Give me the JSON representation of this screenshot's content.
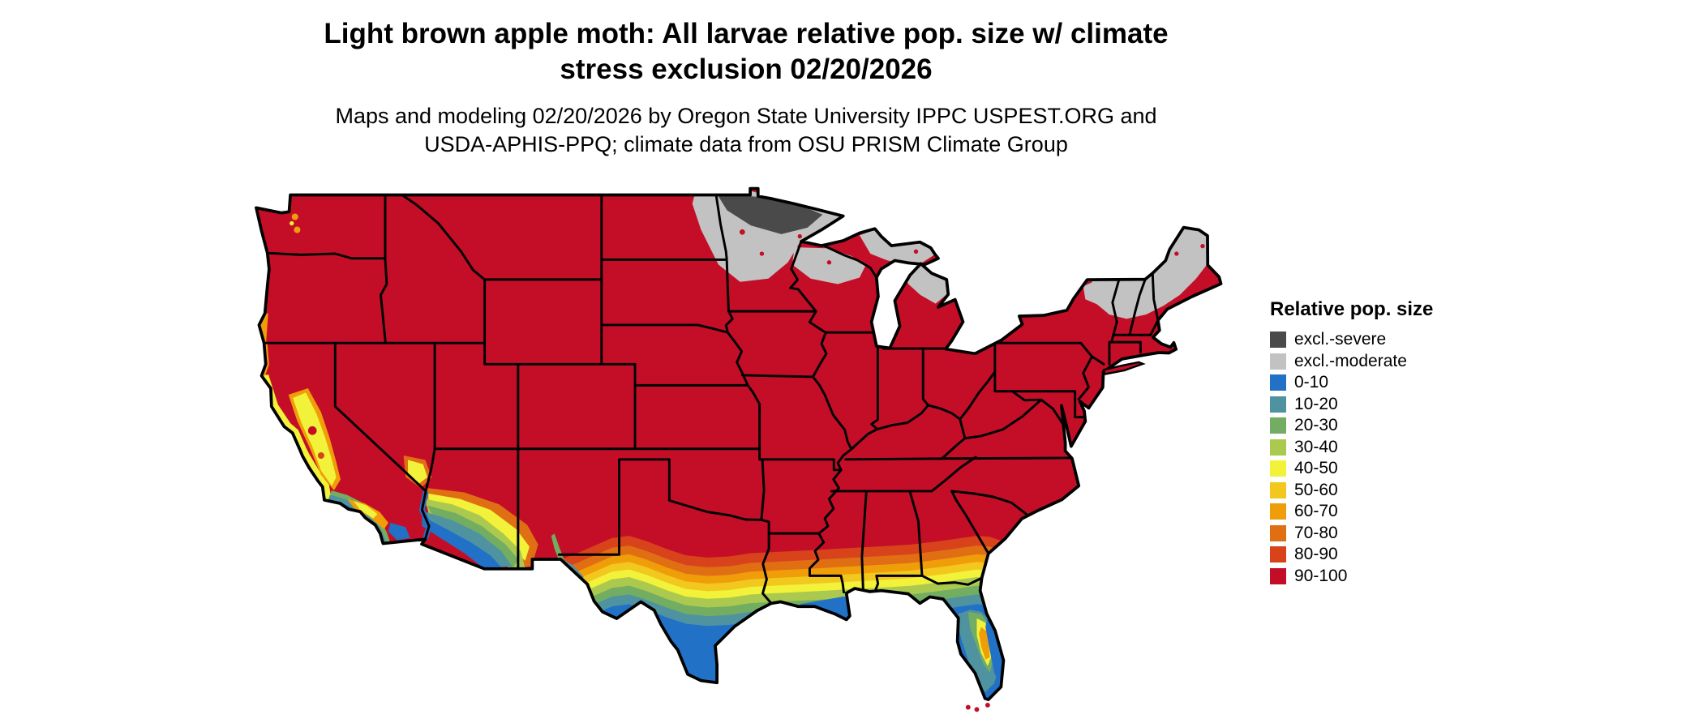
{
  "title": {
    "line1": "Light brown apple moth: All larvae relative pop. size w/ climate",
    "line2": "stress exclusion 02/20/2026"
  },
  "subtitle": {
    "line1": "Maps and modeling 02/20/2026 by Oregon State University IPPC USPEST.ORG and",
    "line2": "USDA-APHIS-PPQ; climate data from OSU PRISM Climate Group"
  },
  "map": {
    "type": "choropleth-map",
    "region": "contiguous United States"
  },
  "legend": {
    "title": "Relative pop. size",
    "items": [
      {
        "label": "excl.-severe",
        "color": "#4A4A4A"
      },
      {
        "label": "excl.-moderate",
        "color": "#C2C2C2"
      },
      {
        "label": "0-10",
        "color": "#2171C7"
      },
      {
        "label": "10-20",
        "color": "#4F93A0"
      },
      {
        "label": "20-30",
        "color": "#72AD62"
      },
      {
        "label": "30-40",
        "color": "#ACC94F"
      },
      {
        "label": "40-50",
        "color": "#F1F239"
      },
      {
        "label": "50-60",
        "color": "#F2C71E"
      },
      {
        "label": "60-70",
        "color": "#F09D0A"
      },
      {
        "label": "70-80",
        "color": "#E06F14"
      },
      {
        "label": "80-90",
        "color": "#D8431B"
      },
      {
        "label": "90-100",
        "color": "#C40E27"
      }
    ]
  }
}
